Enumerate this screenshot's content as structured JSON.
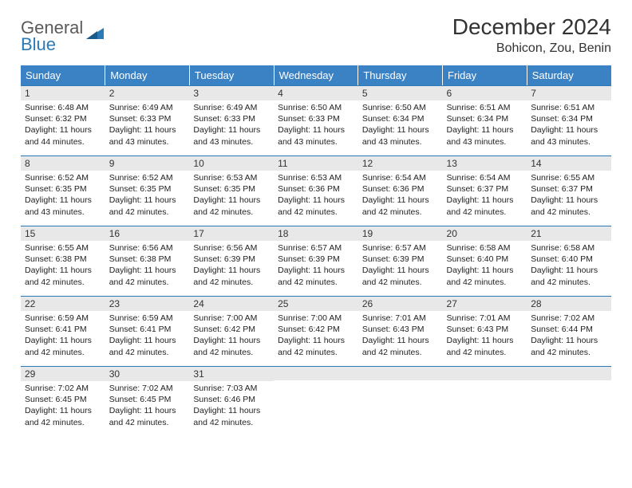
{
  "logo": {
    "word1": "General",
    "word2": "Blue"
  },
  "title": "December 2024",
  "location": "Bohicon, Zou, Benin",
  "header_color": "#3b82c4",
  "rule_color": "#2a7ab8",
  "daynum_bg": "#e8e8e8",
  "text_color": "#333333",
  "weekdays": [
    "Sunday",
    "Monday",
    "Tuesday",
    "Wednesday",
    "Thursday",
    "Friday",
    "Saturday"
  ],
  "days": [
    {
      "n": "1",
      "sr": "6:48 AM",
      "ss": "6:32 PM",
      "dl": "11 hours and 44 minutes."
    },
    {
      "n": "2",
      "sr": "6:49 AM",
      "ss": "6:33 PM",
      "dl": "11 hours and 43 minutes."
    },
    {
      "n": "3",
      "sr": "6:49 AM",
      "ss": "6:33 PM",
      "dl": "11 hours and 43 minutes."
    },
    {
      "n": "4",
      "sr": "6:50 AM",
      "ss": "6:33 PM",
      "dl": "11 hours and 43 minutes."
    },
    {
      "n": "5",
      "sr": "6:50 AM",
      "ss": "6:34 PM",
      "dl": "11 hours and 43 minutes."
    },
    {
      "n": "6",
      "sr": "6:51 AM",
      "ss": "6:34 PM",
      "dl": "11 hours and 43 minutes."
    },
    {
      "n": "7",
      "sr": "6:51 AM",
      "ss": "6:34 PM",
      "dl": "11 hours and 43 minutes."
    },
    {
      "n": "8",
      "sr": "6:52 AM",
      "ss": "6:35 PM",
      "dl": "11 hours and 43 minutes."
    },
    {
      "n": "9",
      "sr": "6:52 AM",
      "ss": "6:35 PM",
      "dl": "11 hours and 42 minutes."
    },
    {
      "n": "10",
      "sr": "6:53 AM",
      "ss": "6:35 PM",
      "dl": "11 hours and 42 minutes."
    },
    {
      "n": "11",
      "sr": "6:53 AM",
      "ss": "6:36 PM",
      "dl": "11 hours and 42 minutes."
    },
    {
      "n": "12",
      "sr": "6:54 AM",
      "ss": "6:36 PM",
      "dl": "11 hours and 42 minutes."
    },
    {
      "n": "13",
      "sr": "6:54 AM",
      "ss": "6:37 PM",
      "dl": "11 hours and 42 minutes."
    },
    {
      "n": "14",
      "sr": "6:55 AM",
      "ss": "6:37 PM",
      "dl": "11 hours and 42 minutes."
    },
    {
      "n": "15",
      "sr": "6:55 AM",
      "ss": "6:38 PM",
      "dl": "11 hours and 42 minutes."
    },
    {
      "n": "16",
      "sr": "6:56 AM",
      "ss": "6:38 PM",
      "dl": "11 hours and 42 minutes."
    },
    {
      "n": "17",
      "sr": "6:56 AM",
      "ss": "6:39 PM",
      "dl": "11 hours and 42 minutes."
    },
    {
      "n": "18",
      "sr": "6:57 AM",
      "ss": "6:39 PM",
      "dl": "11 hours and 42 minutes."
    },
    {
      "n": "19",
      "sr": "6:57 AM",
      "ss": "6:39 PM",
      "dl": "11 hours and 42 minutes."
    },
    {
      "n": "20",
      "sr": "6:58 AM",
      "ss": "6:40 PM",
      "dl": "11 hours and 42 minutes."
    },
    {
      "n": "21",
      "sr": "6:58 AM",
      "ss": "6:40 PM",
      "dl": "11 hours and 42 minutes."
    },
    {
      "n": "22",
      "sr": "6:59 AM",
      "ss": "6:41 PM",
      "dl": "11 hours and 42 minutes."
    },
    {
      "n": "23",
      "sr": "6:59 AM",
      "ss": "6:41 PM",
      "dl": "11 hours and 42 minutes."
    },
    {
      "n": "24",
      "sr": "7:00 AM",
      "ss": "6:42 PM",
      "dl": "11 hours and 42 minutes."
    },
    {
      "n": "25",
      "sr": "7:00 AM",
      "ss": "6:42 PM",
      "dl": "11 hours and 42 minutes."
    },
    {
      "n": "26",
      "sr": "7:01 AM",
      "ss": "6:43 PM",
      "dl": "11 hours and 42 minutes."
    },
    {
      "n": "27",
      "sr": "7:01 AM",
      "ss": "6:43 PM",
      "dl": "11 hours and 42 minutes."
    },
    {
      "n": "28",
      "sr": "7:02 AM",
      "ss": "6:44 PM",
      "dl": "11 hours and 42 minutes."
    },
    {
      "n": "29",
      "sr": "7:02 AM",
      "ss": "6:45 PM",
      "dl": "11 hours and 42 minutes."
    },
    {
      "n": "30",
      "sr": "7:02 AM",
      "ss": "6:45 PM",
      "dl": "11 hours and 42 minutes."
    },
    {
      "n": "31",
      "sr": "7:03 AM",
      "ss": "6:46 PM",
      "dl": "11 hours and 42 minutes."
    }
  ],
  "labels": {
    "sunrise": "Sunrise:",
    "sunset": "Sunset:",
    "daylight": "Daylight:"
  }
}
